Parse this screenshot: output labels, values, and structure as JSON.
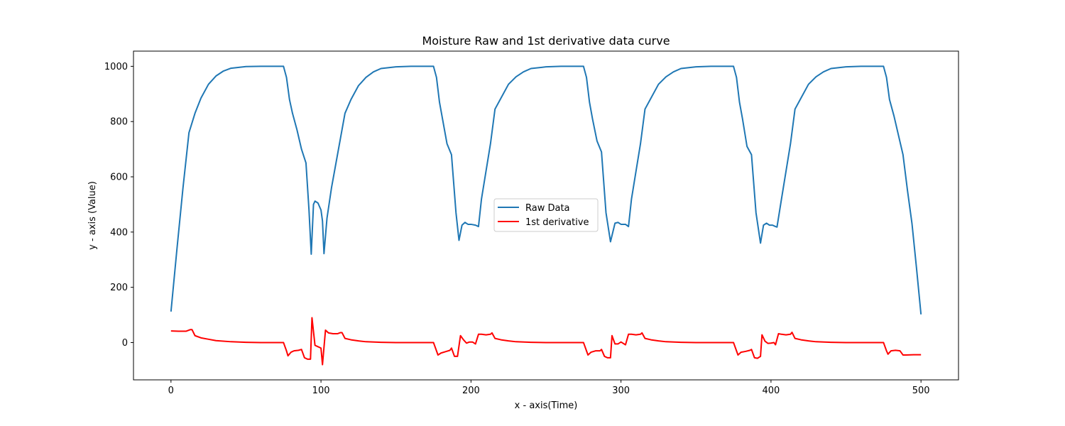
{
  "chart_data": {
    "type": "line",
    "title": "Moisture Raw and 1st derivative data curve",
    "xlabel": "x - axis(Time)",
    "ylabel": "y - axis (Value)",
    "xlim": [
      -25,
      525
    ],
    "ylim": [
      -135,
      1055
    ],
    "xticks": [
      0,
      100,
      200,
      300,
      400,
      500
    ],
    "yticks": [
      0,
      200,
      400,
      600,
      800,
      1000
    ],
    "grid": false,
    "legend_position": "center",
    "series": [
      {
        "name": "Raw Data",
        "color": "#1f77b4",
        "points": [
          [
            0,
            112
          ],
          [
            4,
            340
          ],
          [
            8,
            560
          ],
          [
            12,
            760
          ],
          [
            16,
            830
          ],
          [
            20,
            885
          ],
          [
            25,
            935
          ],
          [
            30,
            965
          ],
          [
            35,
            983
          ],
          [
            40,
            993
          ],
          [
            50,
            999
          ],
          [
            60,
            1000
          ],
          [
            70,
            1000
          ],
          [
            75,
            1000
          ],
          [
            77,
            960
          ],
          [
            79,
            880
          ],
          [
            81,
            830
          ],
          [
            84,
            770
          ],
          [
            87,
            700
          ],
          [
            90,
            650
          ],
          [
            92,
            480
          ],
          [
            93.5,
            320
          ],
          [
            95,
            500
          ],
          [
            96,
            512
          ],
          [
            98,
            505
          ],
          [
            100,
            480
          ],
          [
            101,
            440
          ],
          [
            102,
            322
          ],
          [
            104,
            450
          ],
          [
            107,
            560
          ],
          [
            110,
            650
          ],
          [
            113,
            740
          ],
          [
            116,
            830
          ],
          [
            120,
            880
          ],
          [
            125,
            930
          ],
          [
            130,
            960
          ],
          [
            135,
            980
          ],
          [
            140,
            992
          ],
          [
            150,
            998
          ],
          [
            160,
            1000
          ],
          [
            170,
            1000
          ],
          [
            175,
            1000
          ],
          [
            177,
            960
          ],
          [
            179,
            870
          ],
          [
            181,
            810
          ],
          [
            184,
            720
          ],
          [
            187,
            680
          ],
          [
            190,
            470
          ],
          [
            192,
            370
          ],
          [
            194,
            425
          ],
          [
            196,
            435
          ],
          [
            198,
            428
          ],
          [
            200,
            428
          ],
          [
            203,
            425
          ],
          [
            205,
            420
          ],
          [
            207,
            520
          ],
          [
            210,
            620
          ],
          [
            213,
            720
          ],
          [
            216,
            845
          ],
          [
            220,
            885
          ],
          [
            225,
            935
          ],
          [
            230,
            962
          ],
          [
            235,
            980
          ],
          [
            240,
            992
          ],
          [
            250,
            998
          ],
          [
            260,
            1000
          ],
          [
            270,
            1000
          ],
          [
            275,
            1000
          ],
          [
            277,
            960
          ],
          [
            279,
            870
          ],
          [
            281,
            810
          ],
          [
            284,
            730
          ],
          [
            287,
            690
          ],
          [
            290,
            470
          ],
          [
            293,
            365
          ],
          [
            296,
            432
          ],
          [
            298,
            435
          ],
          [
            300,
            428
          ],
          [
            303,
            428
          ],
          [
            305,
            420
          ],
          [
            307,
            520
          ],
          [
            310,
            620
          ],
          [
            313,
            720
          ],
          [
            316,
            845
          ],
          [
            320,
            885
          ],
          [
            325,
            935
          ],
          [
            330,
            962
          ],
          [
            335,
            980
          ],
          [
            340,
            992
          ],
          [
            350,
            998
          ],
          [
            360,
            1000
          ],
          [
            370,
            1000
          ],
          [
            375,
            1000
          ],
          [
            377,
            960
          ],
          [
            379,
            870
          ],
          [
            381,
            810
          ],
          [
            384,
            710
          ],
          [
            387,
            680
          ],
          [
            390,
            470
          ],
          [
            393,
            360
          ],
          [
            395,
            425
          ],
          [
            397,
            432
          ],
          [
            399,
            425
          ],
          [
            401,
            425
          ],
          [
            403,
            420
          ],
          [
            404,
            418
          ],
          [
            407,
            520
          ],
          [
            410,
            620
          ],
          [
            413,
            720
          ],
          [
            416,
            845
          ],
          [
            420,
            885
          ],
          [
            425,
            935
          ],
          [
            430,
            962
          ],
          [
            435,
            980
          ],
          [
            440,
            992
          ],
          [
            450,
            998
          ],
          [
            460,
            1000
          ],
          [
            470,
            1000
          ],
          [
            475,
            1000
          ],
          [
            477,
            960
          ],
          [
            479,
            880
          ],
          [
            482,
            820
          ],
          [
            485,
            750
          ],
          [
            488,
            680
          ],
          [
            491,
            550
          ],
          [
            494,
            430
          ],
          [
            497,
            270
          ],
          [
            500,
            102
          ]
        ]
      },
      {
        "name": "1st derivative",
        "color": "#ff0000",
        "points": [
          [
            0,
            42
          ],
          [
            5,
            41
          ],
          [
            10,
            41
          ],
          [
            13,
            47
          ],
          [
            14,
            47
          ],
          [
            16,
            25
          ],
          [
            20,
            17
          ],
          [
            25,
            12
          ],
          [
            30,
            7
          ],
          [
            40,
            3
          ],
          [
            50,
            1
          ],
          [
            60,
            0
          ],
          [
            70,
            0
          ],
          [
            75,
            0
          ],
          [
            77,
            -30
          ],
          [
            78,
            -48
          ],
          [
            80,
            -35
          ],
          [
            82,
            -30
          ],
          [
            85,
            -28
          ],
          [
            87,
            -25
          ],
          [
            89,
            -55
          ],
          [
            91,
            -60
          ],
          [
            93,
            -60
          ],
          [
            94,
            90
          ],
          [
            96,
            -10
          ],
          [
            98,
            -15
          ],
          [
            100,
            -20
          ],
          [
            101,
            -80
          ],
          [
            103,
            45
          ],
          [
            105,
            35
          ],
          [
            108,
            32
          ],
          [
            111,
            32
          ],
          [
            113,
            36
          ],
          [
            114,
            36
          ],
          [
            116,
            15
          ],
          [
            120,
            10
          ],
          [
            125,
            6
          ],
          [
            130,
            3
          ],
          [
            140,
            1
          ],
          [
            150,
            0
          ],
          [
            160,
            0
          ],
          [
            175,
            0
          ],
          [
            177,
            -30
          ],
          [
            178,
            -45
          ],
          [
            180,
            -38
          ],
          [
            183,
            -33
          ],
          [
            186,
            -28
          ],
          [
            187,
            -20
          ],
          [
            189,
            -50
          ],
          [
            191,
            -50
          ],
          [
            193,
            25
          ],
          [
            195,
            10
          ],
          [
            197,
            -2
          ],
          [
            199,
            2
          ],
          [
            201,
            2
          ],
          [
            203,
            -5
          ],
          [
            205,
            30
          ],
          [
            207,
            30
          ],
          [
            210,
            28
          ],
          [
            213,
            30
          ],
          [
            214,
            35
          ],
          [
            216,
            15
          ],
          [
            220,
            10
          ],
          [
            225,
            6
          ],
          [
            230,
            3
          ],
          [
            240,
            1
          ],
          [
            250,
            0
          ],
          [
            260,
            0
          ],
          [
            275,
            0
          ],
          [
            277,
            -30
          ],
          [
            278,
            -45
          ],
          [
            280,
            -35
          ],
          [
            283,
            -30
          ],
          [
            286,
            -30
          ],
          [
            287,
            -25
          ],
          [
            289,
            -50
          ],
          [
            291,
            -55
          ],
          [
            293,
            -55
          ],
          [
            294,
            25
          ],
          [
            296,
            -5
          ],
          [
            298,
            -5
          ],
          [
            300,
            2
          ],
          [
            303,
            -8
          ],
          [
            305,
            30
          ],
          [
            307,
            30
          ],
          [
            310,
            28
          ],
          [
            313,
            30
          ],
          [
            314,
            35
          ],
          [
            316,
            15
          ],
          [
            320,
            10
          ],
          [
            325,
            6
          ],
          [
            330,
            3
          ],
          [
            340,
            1
          ],
          [
            350,
            0
          ],
          [
            360,
            0
          ],
          [
            375,
            0
          ],
          [
            377,
            -30
          ],
          [
            378,
            -45
          ],
          [
            380,
            -35
          ],
          [
            383,
            -32
          ],
          [
            386,
            -28
          ],
          [
            387,
            -25
          ],
          [
            389,
            -55
          ],
          [
            391,
            -57
          ],
          [
            393,
            -50
          ],
          [
            394,
            28
          ],
          [
            396,
            5
          ],
          [
            398,
            -3
          ],
          [
            400,
            -2
          ],
          [
            402,
            0
          ],
          [
            403,
            -8
          ],
          [
            405,
            32
          ],
          [
            407,
            30
          ],
          [
            410,
            28
          ],
          [
            413,
            30
          ],
          [
            414,
            37
          ],
          [
            416,
            15
          ],
          [
            420,
            10
          ],
          [
            425,
            6
          ],
          [
            430,
            3
          ],
          [
            440,
            1
          ],
          [
            450,
            0
          ],
          [
            460,
            0
          ],
          [
            475,
            0
          ],
          [
            477,
            -30
          ],
          [
            478,
            -42
          ],
          [
            480,
            -30
          ],
          [
            483,
            -28
          ],
          [
            486,
            -30
          ],
          [
            488,
            -45
          ],
          [
            490,
            -45
          ],
          [
            495,
            -44
          ],
          [
            500,
            -44
          ]
        ]
      }
    ]
  }
}
